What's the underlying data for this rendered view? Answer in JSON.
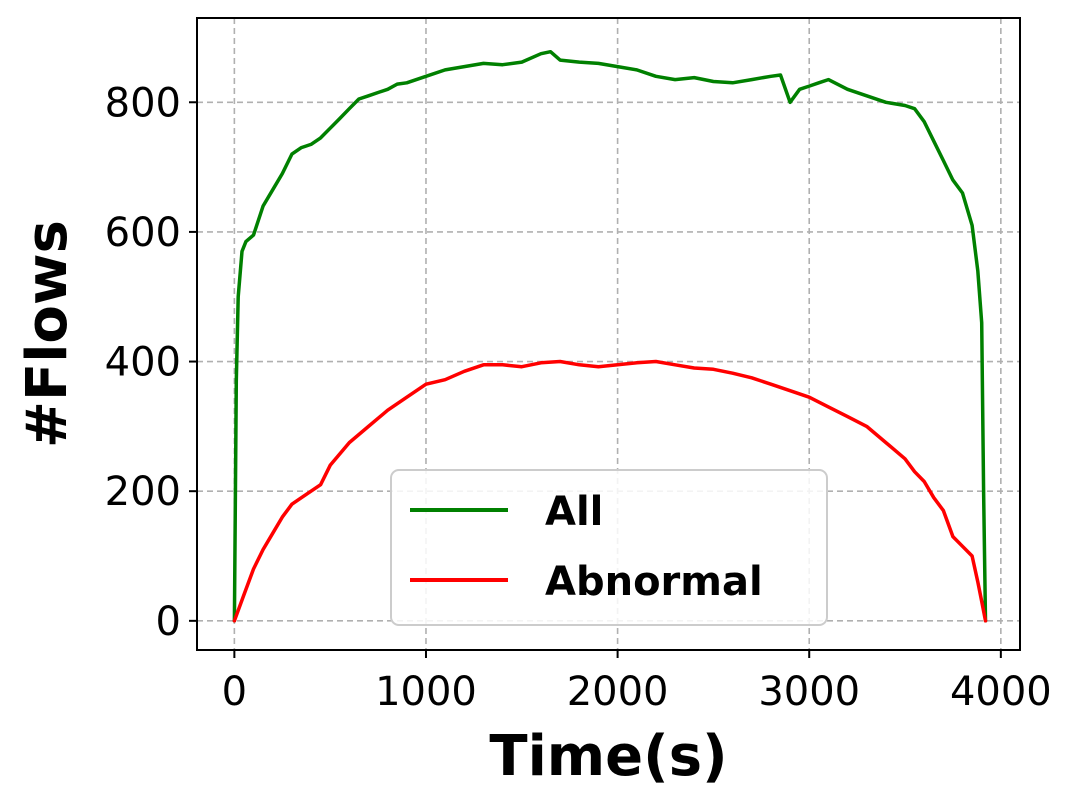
{
  "chart_data": {
    "type": "line",
    "title": "",
    "xlabel": "Time(s)",
    "ylabel": "#Flows",
    "xlim": [
      -195,
      4100
    ],
    "ylim": [
      -45,
      930
    ],
    "xticks": [
      0,
      1000,
      2000,
      3000,
      4000
    ],
    "yticks": [
      0,
      200,
      400,
      600,
      800
    ],
    "xtick_labels": [
      "0",
      "1000",
      "2000",
      "3000",
      "4000"
    ],
    "ytick_labels": [
      "0",
      "200",
      "400",
      "600",
      "800"
    ],
    "grid": true,
    "legend_position": "lower-center",
    "series": [
      {
        "name": "All",
        "color": "#008000",
        "x": [
          0,
          10,
          20,
          40,
          60,
          100,
          150,
          200,
          250,
          300,
          350,
          400,
          450,
          500,
          550,
          600,
          650,
          700,
          750,
          800,
          850,
          900,
          1000,
          1100,
          1200,
          1300,
          1400,
          1500,
          1600,
          1650,
          1700,
          1800,
          1900,
          2000,
          2100,
          2200,
          2300,
          2400,
          2500,
          2600,
          2700,
          2800,
          2850,
          2900,
          2950,
          3000,
          3050,
          3100,
          3200,
          3300,
          3400,
          3500,
          3550,
          3600,
          3650,
          3700,
          3750,
          3800,
          3850,
          3880,
          3900,
          3910,
          3920
        ],
        "values": [
          0,
          370,
          500,
          570,
          585,
          595,
          640,
          665,
          690,
          720,
          730,
          735,
          745,
          760,
          775,
          790,
          805,
          810,
          815,
          820,
          828,
          830,
          840,
          850,
          855,
          860,
          858,
          862,
          875,
          878,
          865,
          862,
          860,
          855,
          850,
          840,
          835,
          838,
          832,
          830,
          835,
          840,
          842,
          800,
          820,
          825,
          830,
          835,
          820,
          810,
          800,
          795,
          790,
          770,
          740,
          710,
          680,
          660,
          610,
          540,
          460,
          200,
          0
        ]
      },
      {
        "name": "Abnormal",
        "color": "#ff0000",
        "x": [
          0,
          50,
          100,
          150,
          200,
          250,
          300,
          350,
          400,
          450,
          500,
          600,
          700,
          800,
          900,
          1000,
          1100,
          1200,
          1300,
          1400,
          1500,
          1600,
          1700,
          1800,
          1900,
          2000,
          2100,
          2200,
          2300,
          2400,
          2500,
          2600,
          2700,
          2800,
          2900,
          3000,
          3100,
          3200,
          3300,
          3400,
          3500,
          3550,
          3600,
          3650,
          3700,
          3750,
          3800,
          3850,
          3880,
          3900,
          3920
        ],
        "values": [
          0,
          40,
          80,
          110,
          135,
          160,
          180,
          190,
          200,
          210,
          240,
          275,
          300,
          325,
          345,
          365,
          372,
          385,
          395,
          395,
          392,
          398,
          400,
          395,
          392,
          395,
          398,
          400,
          395,
          390,
          388,
          382,
          375,
          365,
          355,
          345,
          330,
          315,
          300,
          275,
          250,
          230,
          215,
          190,
          170,
          130,
          115,
          100,
          60,
          30,
          0
        ]
      }
    ]
  }
}
